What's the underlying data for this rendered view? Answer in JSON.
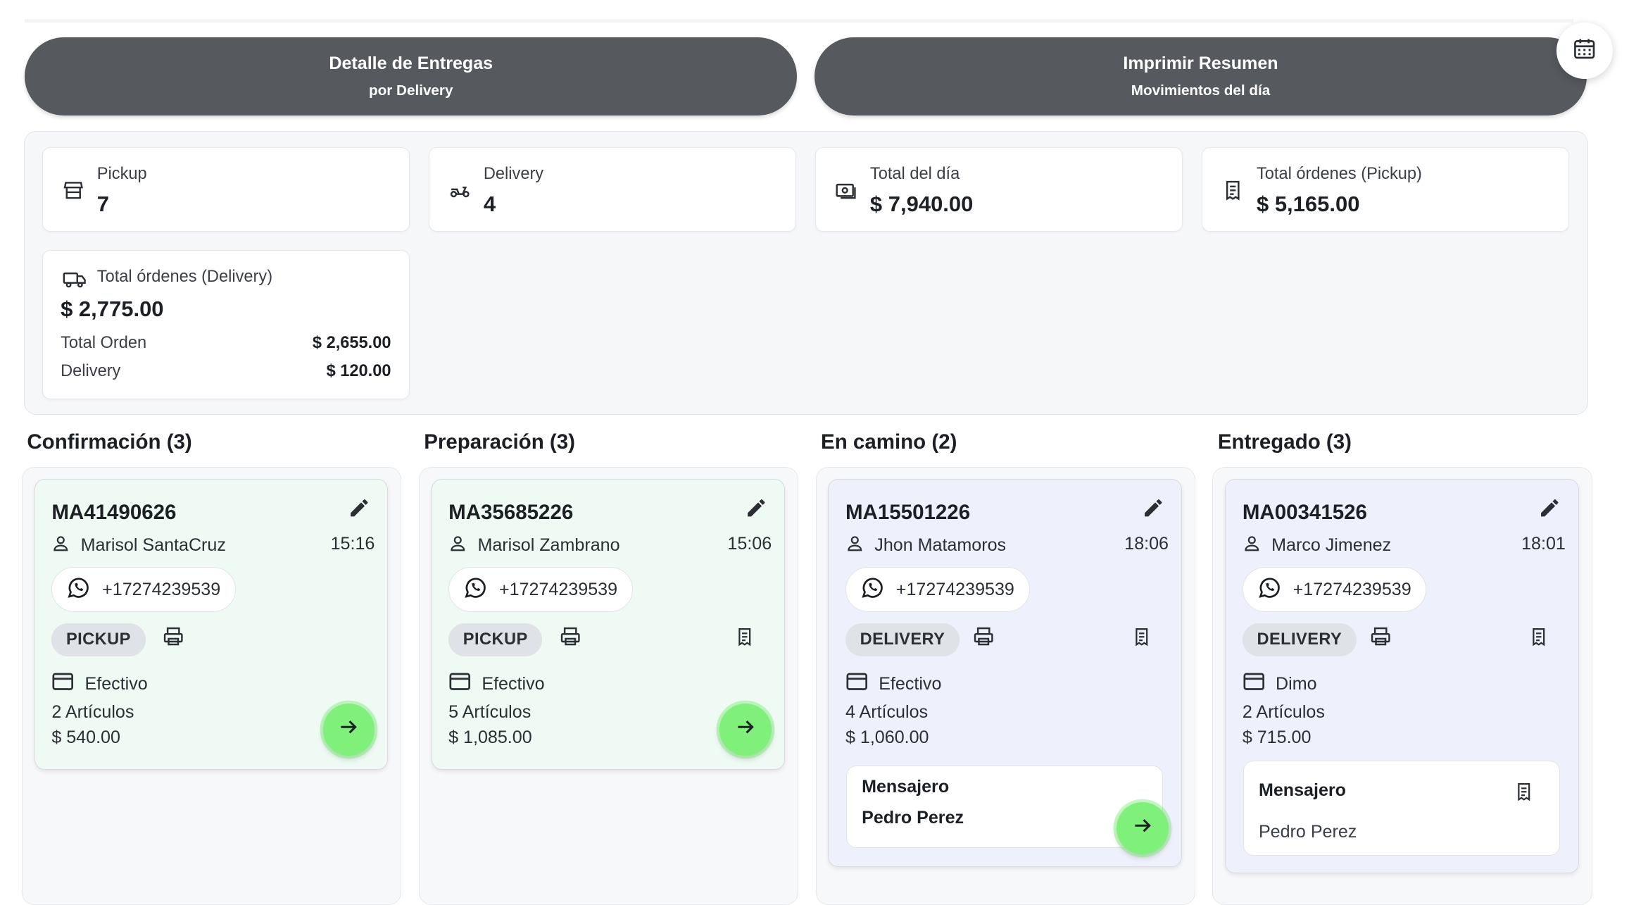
{
  "banners": {
    "delivery_detail": {
      "title": "Detalle de Entregas",
      "subtitle": "por Delivery"
    },
    "print_summary": {
      "title": "Imprimir Resumen",
      "subtitle": "Movimientos del día"
    }
  },
  "icons": {
    "calendar": "calendar-icon",
    "store": "store-icon",
    "scooter": "scooter-icon",
    "cash": "cash-icon",
    "receipt": "receipt-icon",
    "truck": "truck-icon",
    "edit": "pencil-icon",
    "user": "user-icon",
    "whatsapp": "whatsapp-icon",
    "printer": "printer-icon",
    "card": "credit-card-icon",
    "arrow": "arrow-right-icon"
  },
  "summary": {
    "pickup": {
      "label": "Pickup",
      "value": "7"
    },
    "delivery": {
      "label": "Delivery",
      "value": "4"
    },
    "total_dia": {
      "label": "Total del día",
      "value": "$ 7,940.00"
    },
    "total_pickup": {
      "label": "Total órdenes (Pickup)",
      "value": "$ 5,165.00"
    },
    "total_delivery": {
      "label": "Total órdenes (Delivery)",
      "value": "$ 2,775.00",
      "rows": [
        {
          "label": "Total Orden",
          "value": "$ 2,655.00"
        },
        {
          "label": "Delivery",
          "value": "$ 120.00"
        }
      ]
    }
  },
  "columns": [
    {
      "title": "Confirmación (3)"
    },
    {
      "title": "Preparación (3)"
    },
    {
      "title": "En camino (2)"
    },
    {
      "title": "Entregado (3)"
    }
  ],
  "cards": [
    {
      "code": "MA41490626",
      "customer": "Marisol SantaCruz",
      "time": "15:16",
      "phone": "+17274239539",
      "type": "PICKUP",
      "payment": "Efectivo",
      "items": "2 Artículos",
      "amount": "$ 540.00"
    },
    {
      "code": "MA35685226",
      "customer": "Marisol Zambrano",
      "time": "15:06",
      "phone": "+17274239539",
      "type": "PICKUP",
      "payment": "Efectivo",
      "items": "5 Artículos",
      "amount": "$ 1,085.00"
    },
    {
      "code": "MA15501226",
      "customer": "Jhon Matamoros",
      "time": "18:06",
      "phone": "+17274239539",
      "type": "DELIVERY",
      "payment": "Efectivo",
      "items": "4 Artículos",
      "amount": "$ 1,060.00",
      "courier_label": "Mensajero",
      "courier": "Pedro Perez"
    },
    {
      "code": "MA00341526",
      "customer": "Marco Jimenez",
      "time": "18:01",
      "phone": "+17274239539",
      "type": "DELIVERY",
      "payment": "Dimo",
      "items": "2 Artículos",
      "amount": "$ 715.00",
      "courier_label": "Mensajero",
      "courier": "Pedro Perez"
    }
  ],
  "colors": {
    "banner": "#56595e",
    "card_green": "#eefaf3",
    "card_blue": "#eef0fb",
    "go_button": "#7ff07a"
  }
}
